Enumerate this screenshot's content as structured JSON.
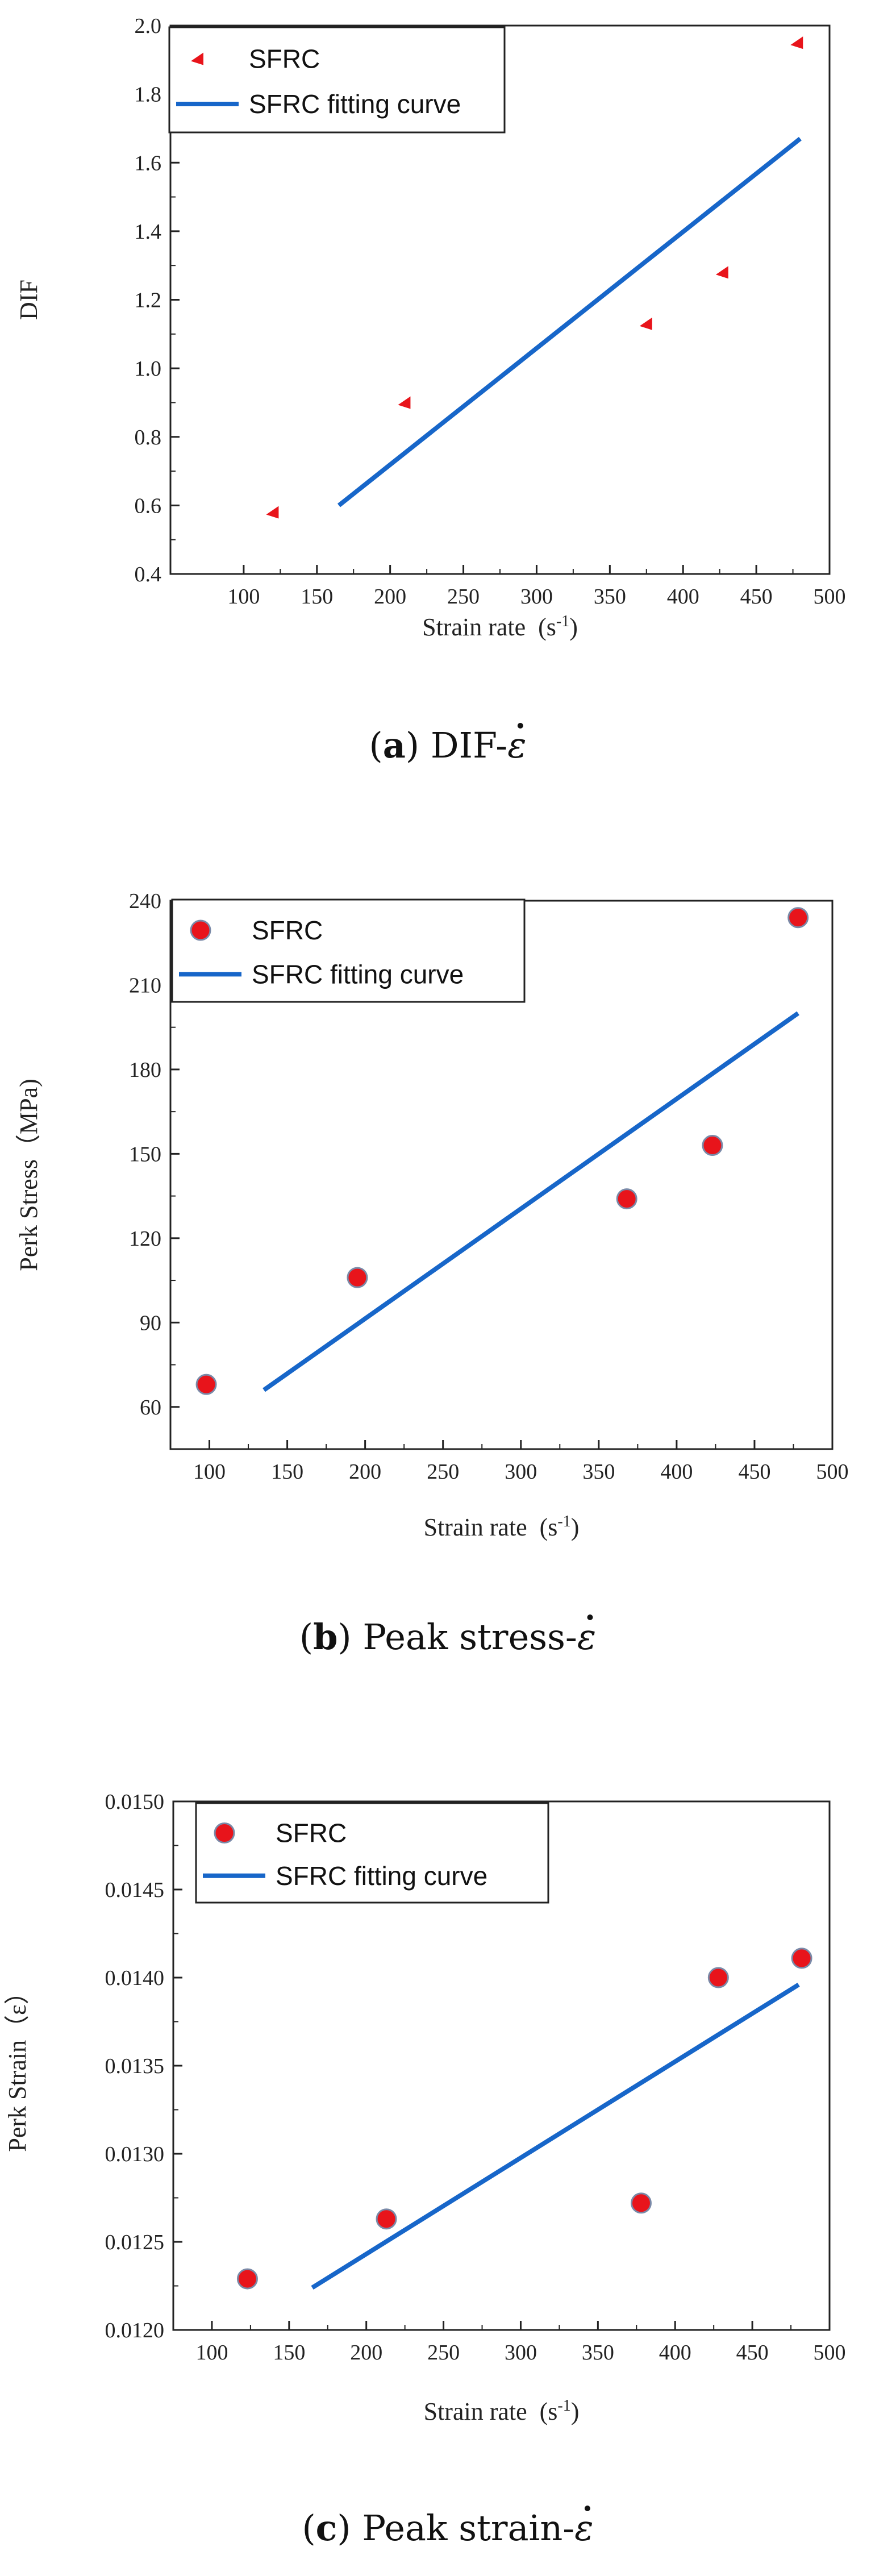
{
  "chart_data": [
    {
      "id": "a",
      "type": "scatter",
      "marker": "triangle",
      "xlabel": "Strain rate",
      "xunit": "(s-1)",
      "ylabel": "DIF",
      "xlim": [
        50,
        500
      ],
      "ylim": [
        0.4,
        2.0
      ],
      "xticks": [
        100,
        150,
        200,
        250,
        300,
        350,
        400,
        450,
        500
      ],
      "yticks": [
        "0.4",
        "0.6",
        "0.8",
        "1.0",
        "1.2",
        "1.4",
        "1.6",
        "1.8",
        "2.0"
      ],
      "series": [
        {
          "name": "SFRC",
          "kind": "points",
          "x": [
            120,
            210,
            375,
            427,
            478
          ],
          "y": [
            0.58,
            0.9,
            1.13,
            1.28,
            1.95
          ]
        },
        {
          "name": "SFRC fitting curve",
          "kind": "line",
          "x": [
            165,
            480
          ],
          "y": [
            0.6,
            1.67
          ]
        }
      ],
      "legend": [
        "SFRC",
        "SFRC fitting curve"
      ],
      "caption": {
        "letter": "a",
        "text": "DIF-",
        "symbol": "ε"
      }
    },
    {
      "id": "b",
      "type": "scatter",
      "marker": "circle",
      "xlabel": "Strain rate",
      "xunit": "(s-1)",
      "ylabel": "Perk Stress（MPa)",
      "xlim": [
        75,
        500
      ],
      "ylim": [
        45,
        240
      ],
      "xticks": [
        100,
        150,
        200,
        250,
        300,
        350,
        400,
        450,
        500
      ],
      "yticks": [
        "60",
        "90",
        "120",
        "150",
        "180",
        "210",
        "240"
      ],
      "series": [
        {
          "name": "SFRC",
          "kind": "points",
          "x": [
            98,
            195,
            368,
            423,
            478
          ],
          "y": [
            68,
            106,
            134,
            153,
            234
          ]
        },
        {
          "name": "SFRC fitting curve",
          "kind": "line",
          "x": [
            135,
            478
          ],
          "y": [
            66,
            200
          ]
        }
      ],
      "legend": [
        "SFRC",
        "SFRC fitting curve"
      ],
      "caption": {
        "letter": "b",
        "text": "Peak stress-",
        "symbol": "ε"
      }
    },
    {
      "id": "c",
      "type": "scatter",
      "marker": "circle",
      "xlabel": "Strain rate",
      "xunit": "(s-1)",
      "ylabel": "Perk Strain（ε）",
      "xlim": [
        75,
        500
      ],
      "ylim": [
        0.012,
        0.015
      ],
      "xticks": [
        100,
        150,
        200,
        250,
        300,
        350,
        400,
        450,
        500
      ],
      "yticks": [
        "0.0120",
        "0.0125",
        "0.0130",
        "0.0135",
        "0.0140",
        "0.0145",
        "0.0150"
      ],
      "series": [
        {
          "name": "SFRC",
          "kind": "points",
          "x": [
            123,
            213,
            378,
            428,
            482
          ],
          "y": [
            0.01229,
            0.01263,
            0.01272,
            0.014,
            0.01411
          ]
        },
        {
          "name": "SFRC fitting curve",
          "kind": "line",
          "x": [
            165,
            480
          ],
          "y": [
            0.01224,
            0.01396
          ]
        }
      ],
      "legend": [
        "SFRC",
        "SFRC fitting curve"
      ],
      "caption": {
        "letter": "c",
        "text": "Peak strain-",
        "symbol": "ε"
      }
    }
  ],
  "colors": {
    "marker_fill": "#e8141b",
    "marker_stroke": "#7a8aa8",
    "line": "#1766c9",
    "axis": "#222222"
  }
}
